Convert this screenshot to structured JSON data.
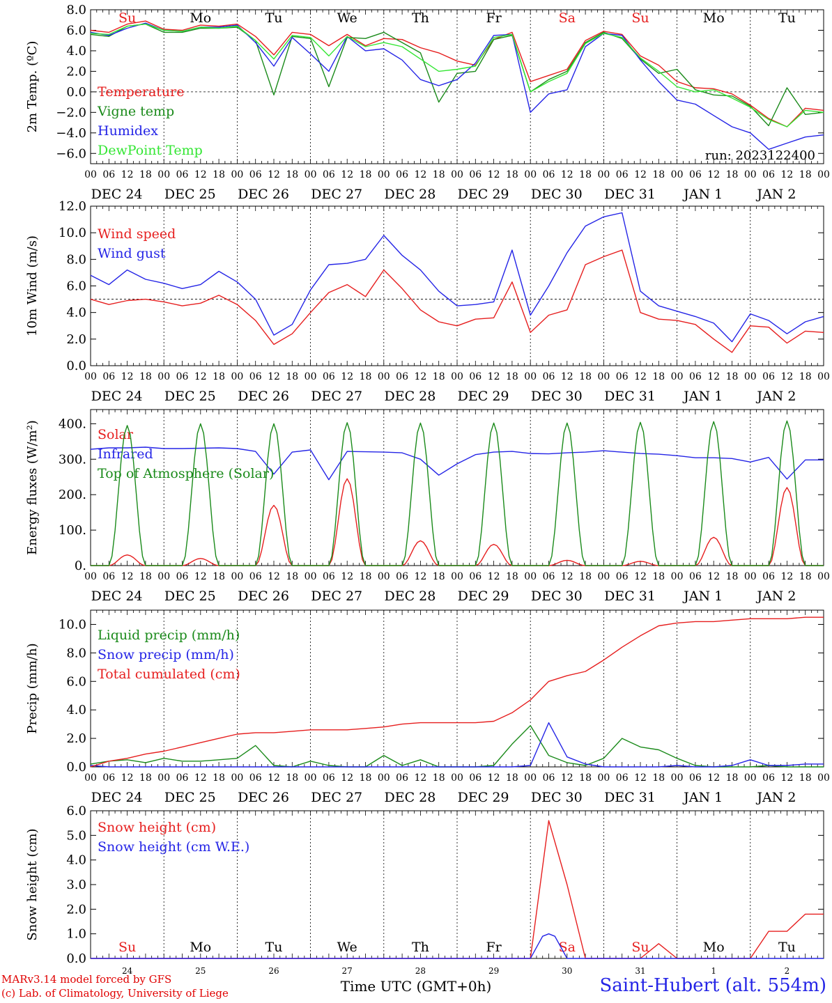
{
  "meta": {
    "run_label": "run: 2023122400",
    "credits": [
      "MARv3.14 model forced by GFS",
      "(c) Lab. of Climatology, University of Liege"
    ],
    "station": "Saint-Hubert (alt. 554m)",
    "time_axis_title": "Time UTC (GMT+0h)"
  },
  "time": {
    "days": [
      "DEC 24",
      "DEC 25",
      "DEC 26",
      "DEC 27",
      "DEC 28",
      "DEC 29",
      "DEC 30",
      "DEC 31",
      "JAN 1",
      "JAN 2"
    ],
    "weekdays": [
      "Su",
      "Mo",
      "Tu",
      "We",
      "Th",
      "Fr",
      "Sa",
      "Su",
      "Mo",
      "Tu"
    ],
    "weekend_flags": [
      true,
      false,
      false,
      false,
      false,
      false,
      true,
      true,
      false,
      false
    ],
    "hour_ticks": [
      "00",
      "06",
      "12",
      "18"
    ],
    "bottom_day_numbers": [
      "24",
      "25",
      "26",
      "27",
      "28",
      "29",
      "30",
      "31",
      "1",
      "2"
    ]
  },
  "colors": {
    "red": "#e61e1e",
    "green": "#1a8a1a",
    "blue": "#2424e6",
    "lightgreen": "#33e633",
    "weekend": "#e61e1e"
  },
  "chart_data": [
    {
      "type": "line",
      "ylabel": "2m Temp. (ºC)",
      "ylim": [
        -7,
        8
      ],
      "yticks": [
        8.0,
        6.0,
        4.0,
        2.0,
        0.0,
        -2.0,
        -4.0,
        -6.0
      ],
      "ytick_labels": [
        "8.0",
        "6.0",
        "4.0",
        "2.0",
        "0.0",
        "−2.0",
        "−4.0",
        "−6.0"
      ],
      "ref_line": 0,
      "x_hours": [
        0,
        6,
        12,
        18,
        24,
        30,
        36,
        42,
        48,
        54,
        60,
        66,
        72,
        78,
        84,
        90,
        96,
        102,
        108,
        114,
        120,
        126,
        132,
        138,
        144,
        150,
        156,
        162,
        168,
        174,
        180,
        186,
        192,
        198,
        204,
        210,
        216,
        222,
        228,
        234,
        240
      ],
      "series": [
        {
          "name": "Temperature",
          "color": "red",
          "values": [
            6.0,
            5.8,
            6.6,
            6.9,
            6.1,
            6.0,
            6.5,
            6.4,
            6.6,
            5.4,
            3.6,
            5.8,
            5.6,
            4.5,
            5.6,
            4.5,
            5.2,
            5.1,
            4.3,
            3.8,
            3.0,
            2.6,
            5.1,
            5.8,
            1.0,
            1.6,
            2.2,
            5.0,
            5.9,
            5.6,
            3.5,
            2.6,
            1.0,
            0.4,
            0.3,
            -0.2,
            -1.3,
            -2.6,
            -3.4,
            -1.6,
            -1.8
          ]
        },
        {
          "name": "Vigne temp",
          "color": "green",
          "values": [
            5.6,
            5.4,
            6.4,
            6.6,
            5.8,
            5.8,
            6.2,
            6.2,
            6.3,
            5.0,
            -0.3,
            5.4,
            5.2,
            0.5,
            5.3,
            5.2,
            5.8,
            4.8,
            3.8,
            -1.0,
            1.8,
            2.0,
            5.1,
            5.5,
            0.0,
            1.2,
            2.0,
            4.8,
            5.8,
            5.2,
            3.2,
            1.8,
            2.2,
            0.2,
            -0.3,
            -0.4,
            -1.4,
            -3.3,
            0.4,
            -2.2,
            -2.0
          ]
        },
        {
          "name": "Humidex",
          "color": "blue",
          "values": [
            5.8,
            5.5,
            6.2,
            6.7,
            6.0,
            5.9,
            6.3,
            6.3,
            6.5,
            4.8,
            2.5,
            5.3,
            3.7,
            2.0,
            5.4,
            4.0,
            4.2,
            3.1,
            1.2,
            0.6,
            1.2,
            2.8,
            5.5,
            5.6,
            -2.0,
            -0.2,
            0.2,
            4.4,
            5.7,
            5.5,
            3.1,
            1.0,
            -0.8,
            -1.2,
            -2.3,
            -3.4,
            -4.0,
            -5.6,
            -5.0,
            -4.4,
            -4.2
          ]
        },
        {
          "name": "DewPoint Temp",
          "color": "lightgreen",
          "values": [
            5.7,
            5.6,
            6.4,
            6.6,
            6.0,
            5.9,
            6.3,
            6.2,
            6.4,
            5.0,
            3.2,
            5.5,
            5.3,
            3.5,
            5.4,
            4.4,
            4.8,
            4.4,
            3.2,
            2.0,
            2.2,
            2.5,
            5.3,
            5.6,
            0.0,
            1.0,
            1.8,
            4.7,
            5.7,
            5.3,
            3.3,
            2.0,
            0.5,
            0.0,
            0.2,
            -0.6,
            -1.5,
            -2.7,
            -3.4,
            -1.8,
            -2.0
          ]
        }
      ]
    },
    {
      "type": "line",
      "ylabel": "10m Wind (m/s)",
      "ylim": [
        0,
        12
      ],
      "yticks": [
        12.0,
        10.0,
        8.0,
        6.0,
        4.0,
        2.0,
        0.0
      ],
      "ytick_labels": [
        "12.0",
        "10.0",
        "8.0",
        "6.0",
        "4.0",
        "2.0",
        "0.0"
      ],
      "ref_line": 5,
      "x_hours": [
        0,
        6,
        12,
        18,
        24,
        30,
        36,
        42,
        48,
        54,
        60,
        66,
        72,
        78,
        84,
        90,
        96,
        102,
        108,
        114,
        120,
        126,
        132,
        138,
        144,
        150,
        156,
        162,
        168,
        174,
        180,
        186,
        192,
        198,
        204,
        210,
        216,
        222,
        228,
        234,
        240
      ],
      "series": [
        {
          "name": "Wind speed",
          "color": "red",
          "values": [
            5.0,
            4.6,
            4.9,
            5.0,
            4.8,
            4.5,
            4.7,
            5.3,
            4.6,
            3.4,
            1.6,
            2.4,
            4.0,
            5.5,
            6.1,
            5.2,
            7.2,
            5.8,
            4.2,
            3.3,
            3.0,
            3.5,
            3.6,
            6.3,
            2.5,
            3.8,
            4.2,
            7.6,
            8.2,
            8.7,
            4.0,
            3.5,
            3.4,
            3.1,
            2.0,
            1.0,
            3.0,
            2.9,
            1.7,
            2.6,
            2.5
          ]
        },
        {
          "name": "Wind gust",
          "color": "blue",
          "values": [
            6.8,
            6.1,
            7.2,
            6.5,
            6.2,
            5.8,
            6.1,
            7.1,
            6.3,
            5.0,
            2.3,
            3.1,
            5.7,
            7.6,
            7.7,
            8.0,
            9.8,
            8.3,
            7.2,
            5.6,
            4.5,
            4.6,
            4.8,
            8.7,
            3.8,
            6.0,
            8.5,
            10.5,
            11.2,
            11.5,
            5.6,
            4.5,
            4.1,
            3.7,
            3.2,
            1.8,
            3.9,
            3.4,
            2.4,
            3.3,
            3.7
          ]
        }
      ]
    },
    {
      "type": "line",
      "ylabel": "Energy fluxes (W/m²)",
      "ylim": [
        0,
        440
      ],
      "yticks": [
        400,
        300,
        200,
        100,
        0
      ],
      "ytick_labels": [
        "400.",
        "300.",
        "200.",
        "100.",
        "0."
      ],
      "ref_line": null,
      "series": [
        {
          "name": "Solar",
          "color": "red",
          "day_peaks": [
            30,
            20,
            170,
            245,
            70,
            60,
            15,
            12,
            80,
            220
          ]
        },
        {
          "name": "Infrared",
          "color": "blue",
          "x_hours": [
            0,
            6,
            12,
            18,
            24,
            30,
            36,
            42,
            48,
            54,
            60,
            66,
            72,
            78,
            84,
            90,
            96,
            102,
            108,
            114,
            120,
            126,
            132,
            138,
            144,
            150,
            156,
            162,
            168,
            174,
            180,
            186,
            192,
            198,
            204,
            210,
            216,
            222,
            228,
            234,
            240
          ],
          "values": [
            328,
            332,
            332,
            334,
            330,
            330,
            331,
            332,
            330,
            322,
            258,
            320,
            326,
            242,
            322,
            321,
            320,
            318,
            300,
            255,
            287,
            313,
            320,
            322,
            316,
            315,
            318,
            320,
            324,
            320,
            316,
            314,
            310,
            304,
            304,
            302,
            292,
            305,
            244,
            298,
            298
          ]
        },
        {
          "name": "Top of Atmosphere (Solar)",
          "color": "green",
          "day_peaks": [
            395,
            400,
            400,
            403,
            402,
            402,
            402,
            404,
            406,
            408
          ]
        }
      ]
    },
    {
      "type": "line",
      "ylabel": "Precip (mm/h)",
      "ylim": [
        0,
        11
      ],
      "yticks": [
        10.0,
        8.0,
        6.0,
        4.0,
        2.0,
        0.0
      ],
      "ytick_labels": [
        "10.0",
        "8.0",
        "6.0",
        "4.0",
        "2.0",
        "0.0"
      ],
      "ref_line": null,
      "series": [
        {
          "name": "Liquid precip (mm/h)",
          "color": "green",
          "x_hours": [
            0,
            6,
            12,
            18,
            24,
            30,
            36,
            42,
            48,
            54,
            60,
            66,
            72,
            78,
            84,
            90,
            96,
            102,
            108,
            114,
            120,
            126,
            132,
            138,
            144,
            150,
            156,
            162,
            168,
            174,
            180,
            186,
            192,
            198,
            204,
            210,
            216,
            222,
            228,
            234,
            240
          ],
          "values": [
            0.2,
            0.4,
            0.5,
            0.3,
            0.6,
            0.4,
            0.4,
            0.5,
            0.6,
            1.5,
            0.1,
            0.0,
            0.4,
            0.1,
            0.0,
            0.0,
            0.8,
            0.1,
            0.5,
            0.0,
            0.0,
            0.0,
            0.1,
            1.6,
            2.9,
            0.8,
            0.3,
            0.1,
            0.6,
            2.0,
            1.4,
            1.2,
            0.6,
            0.1,
            0.0,
            0.0,
            0.0,
            0.1,
            0.0,
            0.0,
            0.0
          ]
        },
        {
          "name": "Snow precip (mm/h)",
          "color": "blue",
          "x_hours": [
            0,
            6,
            12,
            18,
            24,
            30,
            36,
            42,
            48,
            54,
            60,
            66,
            72,
            78,
            84,
            90,
            96,
            102,
            108,
            114,
            120,
            126,
            132,
            138,
            144,
            150,
            156,
            162,
            168,
            174,
            180,
            186,
            192,
            198,
            204,
            210,
            216,
            222,
            228,
            234,
            240
          ],
          "values": [
            0.1,
            0.0,
            0.0,
            0.0,
            0.0,
            0.0,
            0.0,
            0.0,
            0.0,
            0.0,
            0.0,
            0.0,
            0.0,
            0.0,
            0.0,
            0.0,
            0.0,
            0.0,
            0.0,
            0.0,
            0.0,
            0.0,
            0.0,
            0.0,
            0.1,
            3.1,
            0.7,
            0.2,
            0.0,
            0.0,
            0.0,
            0.0,
            0.1,
            0.0,
            0.0,
            0.1,
            0.5,
            0.1,
            0.1,
            0.2,
            0.2
          ]
        },
        {
          "name": "Total cumulated (cm)",
          "color": "red",
          "x_hours": [
            0,
            6,
            12,
            18,
            24,
            30,
            36,
            42,
            48,
            54,
            60,
            66,
            72,
            78,
            84,
            90,
            96,
            102,
            108,
            114,
            120,
            126,
            132,
            138,
            144,
            150,
            156,
            162,
            168,
            174,
            180,
            186,
            192,
            198,
            204,
            210,
            216,
            222,
            228,
            234,
            240
          ],
          "values": [
            0.0,
            0.4,
            0.6,
            0.9,
            1.1,
            1.4,
            1.7,
            2.0,
            2.3,
            2.4,
            2.4,
            2.5,
            2.6,
            2.6,
            2.6,
            2.7,
            2.8,
            3.0,
            3.1,
            3.1,
            3.1,
            3.1,
            3.2,
            3.8,
            4.7,
            6.0,
            6.4,
            6.7,
            7.5,
            8.4,
            9.2,
            9.9,
            10.1,
            10.2,
            10.2,
            10.3,
            10.4,
            10.4,
            10.4,
            10.5,
            10.5
          ]
        }
      ]
    },
    {
      "type": "line",
      "ylabel": "Snow height (cm)",
      "ylim": [
        0,
        6
      ],
      "yticks": [
        6.0,
        5.0,
        4.0,
        3.0,
        2.0,
        1.0,
        0.0
      ],
      "ytick_labels": [
        "6.0",
        "5.0",
        "4.0",
        "3.0",
        "2.0",
        "1.0",
        "0.0"
      ],
      "ref_line": null,
      "series": [
        {
          "name": "Snow height (cm)",
          "color": "red",
          "x_hours": [
            0,
            144,
            150,
            156,
            162,
            168,
            174,
            180,
            186,
            192,
            198,
            204,
            210,
            216,
            222,
            228,
            234,
            240
          ],
          "values": [
            0.0,
            0.0,
            5.6,
            3.0,
            0.0,
            0.0,
            0.0,
            0.0,
            0.6,
            0.0,
            0.0,
            0.0,
            0.0,
            0.0,
            1.1,
            1.1,
            1.8,
            1.8
          ]
        },
        {
          "name": "Snow height (cm W.E.)",
          "color": "blue",
          "x_hours": [
            0,
            144,
            148,
            150,
            152,
            156,
            162,
            240
          ],
          "values": [
            0.0,
            0.0,
            0.9,
            1.0,
            0.9,
            0.0,
            0.0,
            0.0
          ]
        }
      ]
    }
  ]
}
